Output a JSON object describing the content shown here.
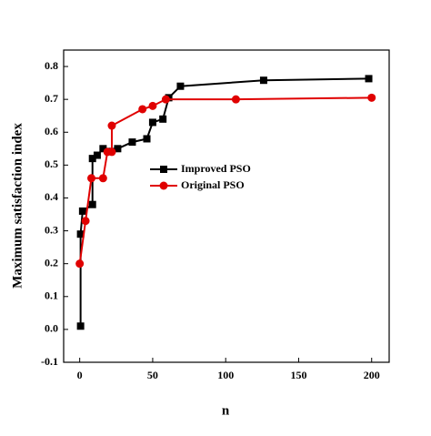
{
  "chart_data": {
    "type": "line",
    "x_label": "n",
    "y_label": "Maximum satisfaction index",
    "xlim": [
      -11,
      212
    ],
    "xticks": [
      0,
      50,
      100,
      150,
      200
    ],
    "ylim": [
      -0.1,
      0.85
    ],
    "yticks": [
      {
        "value": -0.1,
        "label": "-0.1"
      },
      {
        "value": 0,
        "label": "0.0"
      },
      0.1,
      0.2,
      0.3,
      0.4,
      0.5,
      0.6,
      0.7,
      0.8
    ],
    "legend": "center",
    "series": [
      {
        "name": "Improved PSO",
        "color": "#000000",
        "marker": "square",
        "x": [
          0.6,
          0.6,
          2,
          8.75,
          8.75,
          12,
          16,
          26,
          36,
          46,
          50,
          57,
          61,
          69,
          126,
          198
        ],
        "values": [
          0.01,
          0.29,
          0.36,
          0.38,
          0.52,
          0.53,
          0.55,
          0.55,
          0.57,
          0.58,
          0.63,
          0.64,
          0.705,
          0.74,
          0.758,
          0.763
        ]
      },
      {
        "name": "Original PSO",
        "color": "#e00000",
        "marker": "circle",
        "x": [
          0,
          4,
          8,
          16,
          19,
          22,
          22,
          43,
          50,
          59,
          107,
          200
        ],
        "values": [
          0.2,
          0.33,
          0.46,
          0.46,
          0.54,
          0.54,
          0.62,
          0.67,
          0.68,
          0.7,
          0.7,
          0.705
        ]
      }
    ]
  }
}
